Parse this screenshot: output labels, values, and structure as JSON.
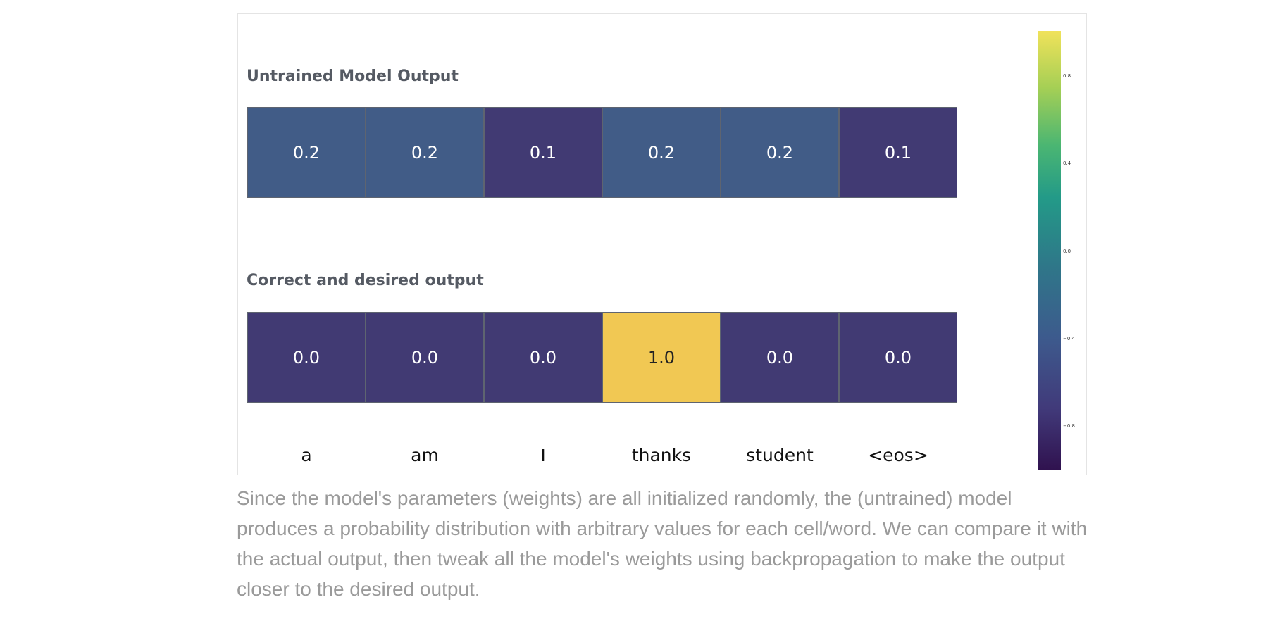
{
  "chart_data": {
    "type": "heatmap",
    "categories": [
      "a",
      "am",
      "I",
      "thanks",
      "student",
      "<eos>"
    ],
    "series": [
      {
        "name": "Untrained Model Output",
        "values": [
          "0.2",
          "0.2",
          "0.1",
          "0.2",
          "0.2",
          "0.1"
        ]
      },
      {
        "name": "Correct and desired output",
        "values": [
          "0.0",
          "0.0",
          "0.0",
          "1.0",
          "0.0",
          "0.0"
        ]
      }
    ],
    "colorbar": {
      "ticks": [
        "0.8",
        "0.4",
        "0.0",
        "−0.4",
        "−0.8"
      ]
    },
    "colors": {
      "0.0": "#413a73",
      "0.1": "#413a73",
      "0.2": "#415c87",
      "1.0": "#f1c853"
    }
  },
  "caption": "Since the model's parameters (weights) are all initialized randomly, the (untrained) model produces a probability distribution with arbitrary values for each cell/word. We can compare it with the actual output, then tweak all the model's weights using backpropagation to make the output closer to the desired output."
}
